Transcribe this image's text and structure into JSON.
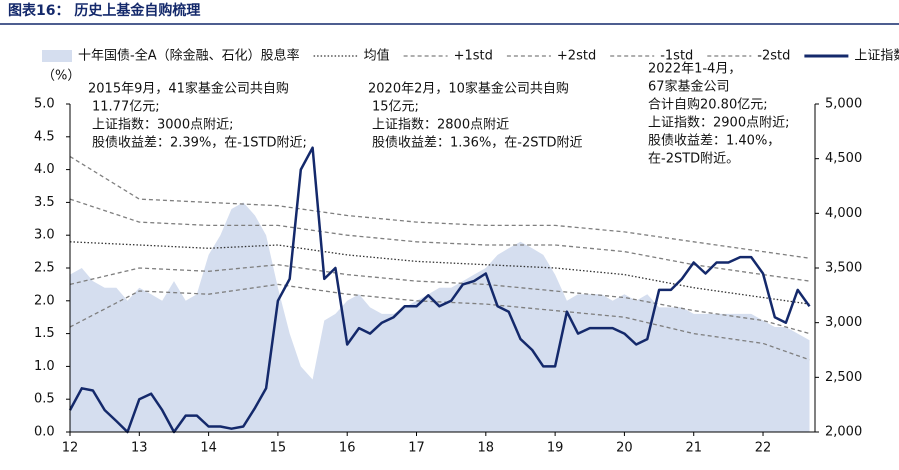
{
  "chart_data": {
    "type": "line",
    "title": "图表16：  历史上基金自购梳理",
    "y_label": "（%）",
    "xlim": [
      2012,
      2022.75
    ],
    "xticks": [
      {
        "value": 2012,
        "label": "12"
      },
      {
        "value": 2013,
        "label": "13"
      },
      {
        "value": 2014,
        "label": "14"
      },
      {
        "value": 2015,
        "label": "15"
      },
      {
        "value": 2016,
        "label": "16"
      },
      {
        "value": 2017,
        "label": "17"
      },
      {
        "value": 2018,
        "label": "18"
      },
      {
        "value": 2019,
        "label": "19"
      },
      {
        "value": 2020,
        "label": "20"
      },
      {
        "value": 2021,
        "label": "21"
      },
      {
        "value": 2022,
        "label": "22"
      }
    ],
    "ylim": [
      0,
      5
    ],
    "yticks": [
      {
        "value": 0,
        "label": "0.0"
      },
      {
        "value": 0.5,
        "label": "0.5"
      },
      {
        "value": 1,
        "label": "1.0"
      },
      {
        "value": 1.5,
        "label": "1.5"
      },
      {
        "value": 2,
        "label": "2.0"
      },
      {
        "value": 2.5,
        "label": "2.5"
      },
      {
        "value": 3,
        "label": "3.0"
      },
      {
        "value": 3.5,
        "label": "3.5"
      },
      {
        "value": 4,
        "label": "4.0"
      },
      {
        "value": 4.5,
        "label": "4.5"
      },
      {
        "value": 5,
        "label": "5.0"
      }
    ],
    "y2lim": [
      2000,
      5000
    ],
    "y2ticks": [
      {
        "value": 2000,
        "label": "2,000"
      },
      {
        "value": 2500,
        "label": "2,500"
      },
      {
        "value": 3000,
        "label": "3,000"
      },
      {
        "value": 3500,
        "label": "3,500"
      },
      {
        "value": 4000,
        "label": "4,000"
      },
      {
        "value": 4500,
        "label": "4,500"
      },
      {
        "value": 5000,
        "label": "5,000"
      }
    ],
    "x": [
      2012.0,
      2012.17,
      2012.33,
      2012.5,
      2012.67,
      2012.83,
      2013.0,
      2013.17,
      2013.33,
      2013.5,
      2013.67,
      2013.83,
      2014.0,
      2014.17,
      2014.33,
      2014.5,
      2014.67,
      2014.83,
      2015.0,
      2015.17,
      2015.33,
      2015.5,
      2015.67,
      2015.83,
      2016.0,
      2016.17,
      2016.33,
      2016.5,
      2016.67,
      2016.83,
      2017.0,
      2017.17,
      2017.33,
      2017.5,
      2017.67,
      2017.83,
      2018.0,
      2018.17,
      2018.33,
      2018.5,
      2018.67,
      2018.83,
      2019.0,
      2019.17,
      2019.33,
      2019.5,
      2019.67,
      2019.83,
      2020.0,
      2020.17,
      2020.33,
      2020.5,
      2020.67,
      2020.83,
      2021.0,
      2021.17,
      2021.33,
      2021.5,
      2021.67,
      2021.83,
      2022.0,
      2022.17,
      2022.33,
      2022.5,
      2022.67
    ],
    "series": [
      {
        "name": "十年国债-全A（除金融、石化）股息率",
        "kind": "area",
        "color": "#d5deef",
        "values": [
          2.4,
          2.5,
          2.3,
          2.2,
          2.2,
          2.0,
          2.2,
          2.1,
          2.0,
          2.3,
          2.0,
          2.1,
          2.7,
          3.0,
          3.4,
          3.5,
          3.3,
          3.0,
          2.2,
          1.5,
          1.0,
          0.8,
          1.7,
          1.8,
          2.0,
          2.1,
          1.9,
          1.8,
          1.8,
          1.9,
          2.0,
          2.1,
          2.2,
          2.2,
          2.3,
          2.4,
          2.5,
          2.7,
          2.8,
          2.9,
          2.8,
          2.7,
          2.4,
          2.0,
          2.1,
          2.1,
          2.1,
          2.0,
          2.1,
          2.0,
          2.1,
          1.9,
          1.9,
          1.9,
          1.8,
          1.8,
          1.8,
          1.8,
          1.8,
          1.8,
          1.7,
          1.6,
          1.6,
          1.5,
          1.4
        ]
      },
      {
        "name": "均值",
        "kind": "dotted",
        "color": "#333333",
        "x": [
          2012,
          2013,
          2014,
          2015,
          2016,
          2017,
          2018,
          2019,
          2020,
          2021,
          2022,
          2022.67
        ],
        "values": [
          2.9,
          2.85,
          2.8,
          2.85,
          2.7,
          2.6,
          2.55,
          2.5,
          2.4,
          2.2,
          2.05,
          1.95
        ]
      },
      {
        "name": "+1std",
        "kind": "dashed",
        "color": "#7f7f7f",
        "x": [
          2012,
          2013,
          2014,
          2015,
          2016,
          2017,
          2018,
          2019,
          2020,
          2021,
          2022,
          2022.67
        ],
        "values": [
          3.55,
          3.2,
          3.15,
          3.15,
          3.0,
          2.9,
          2.85,
          2.85,
          2.75,
          2.55,
          2.4,
          2.3
        ]
      },
      {
        "name": "+2std",
        "kind": "dashed",
        "color": "#7f7f7f",
        "x": [
          2012,
          2013,
          2014,
          2015,
          2016,
          2017,
          2018,
          2019,
          2020,
          2021,
          2022,
          2022.67
        ],
        "values": [
          4.2,
          3.55,
          3.5,
          3.45,
          3.3,
          3.2,
          3.15,
          3.15,
          3.05,
          2.9,
          2.75,
          2.65
        ]
      },
      {
        "name": "-1std",
        "kind": "dashed",
        "color": "#7f7f7f",
        "x": [
          2012,
          2013,
          2014,
          2015,
          2016,
          2017,
          2018,
          2019,
          2020,
          2021,
          2022,
          2022.67
        ],
        "values": [
          2.25,
          2.5,
          2.45,
          2.55,
          2.4,
          2.3,
          2.25,
          2.15,
          2.05,
          1.85,
          1.7,
          1.5
        ]
      },
      {
        "name": "-2std",
        "kind": "dashed",
        "color": "#7f7f7f",
        "x": [
          2012,
          2013,
          2014,
          2015,
          2016,
          2017,
          2018,
          2019,
          2020,
          2021,
          2022,
          2022.67
        ],
        "values": [
          1.6,
          2.15,
          2.1,
          2.25,
          2.1,
          2.0,
          1.95,
          1.85,
          1.75,
          1.5,
          1.35,
          1.1
        ]
      },
      {
        "name": "上证指数（右）",
        "kind": "solid",
        "axis": "y2",
        "color": "#14296b",
        "values": [
          2200,
          2400,
          2380,
          2200,
          2100,
          2000,
          2300,
          2350,
          2200,
          2000,
          2150,
          2150,
          2050,
          2050,
          2030,
          2050,
          2220,
          2400,
          3200,
          3400,
          4400,
          4600,
          3400,
          3500,
          2800,
          2950,
          2900,
          3000,
          3050,
          3150,
          3150,
          3250,
          3150,
          3200,
          3350,
          3380,
          3450,
          3150,
          3100,
          2850,
          2750,
          2600,
          2600,
          3100,
          2900,
          2950,
          2950,
          2950,
          2900,
          2800,
          2850,
          3300,
          3300,
          3400,
          3550,
          3450,
          3550,
          3550,
          3600,
          3600,
          3450,
          3050,
          3000,
          3300,
          3150
        ]
      }
    ],
    "annotations": [
      {
        "lines": [
          "2015年9月，41家基金公司共自购",
          "11.77亿元;",
          "上证指数：3000点附近;",
          "股债收益差：2.39%，在-1STD附近;"
        ]
      },
      {
        "lines": [
          "2020年2月，10家基金公司共自购",
          "15亿元;",
          "上证指数：2800点附近",
          "股债收益差：1.36%，在-2STD附近"
        ]
      },
      {
        "lines": [
          "2022年1-4月，",
          "67家基金公司",
          "合计自购20.80亿元;",
          "上证指数：2900点附近;",
          "股债收益差：1.40%，",
          "在-2STD附近。"
        ]
      }
    ]
  }
}
